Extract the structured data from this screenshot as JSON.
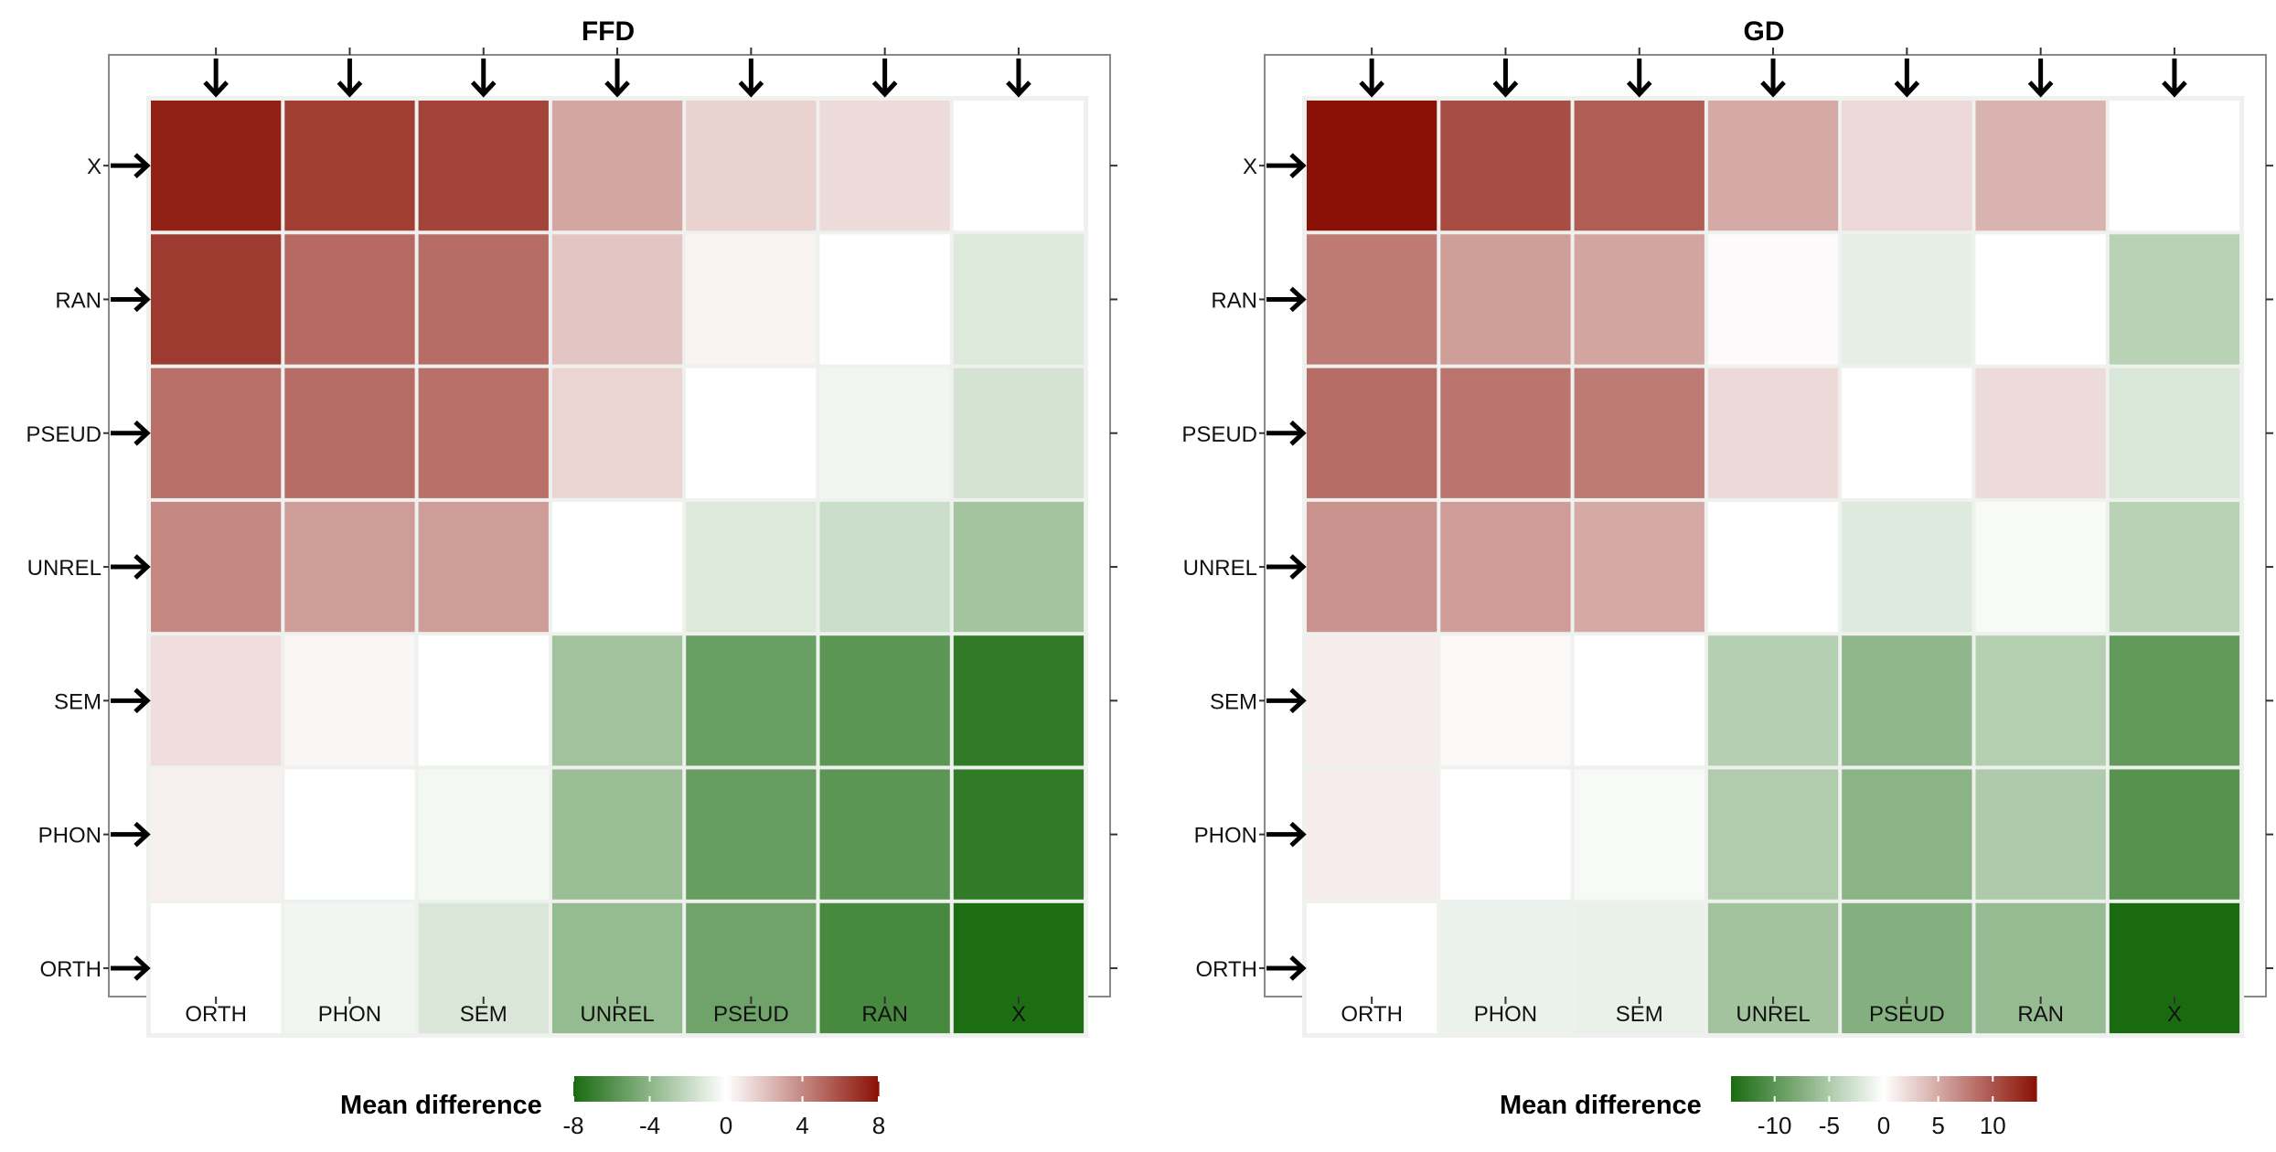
{
  "chart_data": [
    {
      "type": "heatmap",
      "title": "FFD",
      "columns": [
        "ORTH",
        "PHON",
        "SEM",
        "UNREL",
        "PSEUD",
        "RAN",
        "X"
      ],
      "rows": [
        "X",
        "RAN",
        "PSEUD",
        "UNREL",
        "SEM",
        "PHON",
        "ORTH"
      ],
      "values": [
        [
          7.5,
          6.5,
          6.3,
          3.0,
          1.5,
          1.2,
          0
        ],
        [
          6.6,
          5.0,
          4.9,
          1.9,
          0.4,
          0,
          -1.2
        ],
        [
          4.8,
          4.9,
          4.8,
          1.4,
          0,
          -0.5,
          -1.5
        ],
        [
          4.0,
          3.3,
          3.3,
          0,
          -1.2,
          -1.8,
          -3.2
        ],
        [
          1.1,
          0.3,
          0,
          -3.3,
          -5.2,
          -5.7,
          -7.2
        ],
        [
          0.5,
          0,
          -0.4,
          -3.5,
          -5.3,
          -5.7,
          -7.2
        ],
        [
          0,
          -0.5,
          -1.3,
          -3.7,
          -5.0,
          -6.4,
          -7.9
        ]
      ],
      "legend": {
        "title": "Mean  difference",
        "limits": [
          -8,
          8
        ],
        "ticks": [
          -8,
          -4,
          0,
          4,
          8
        ],
        "tick_labels": [
          "-8",
          "-4",
          "0",
          "4",
          "8"
        ],
        "position": "bottom"
      },
      "colors": {
        "low": "#1a6b10",
        "mid": "#ffffff",
        "high": "#8a1105"
      }
    },
    {
      "type": "heatmap",
      "title": "GD",
      "columns": [
        "ORTH",
        "PHON",
        "SEM",
        "UNREL",
        "PSEUD",
        "RAN",
        "X"
      ],
      "rows": [
        "X",
        "RAN",
        "PSEUD",
        "UNREL",
        "SEM",
        "PHON",
        "ORTH"
      ],
      "values": [
        [
          14.0,
          10.5,
          9.5,
          5.0,
          2.3,
          4.5,
          0
        ],
        [
          7.8,
          5.7,
          5.3,
          0.3,
          -1.5,
          0,
          -4.3
        ],
        [
          8.7,
          8.1,
          7.8,
          2.2,
          0,
          2.1,
          -2.3
        ],
        [
          6.4,
          5.8,
          5.0,
          0,
          -2.0,
          -0.5,
          -4.3
        ],
        [
          1.1,
          0.4,
          0,
          -4.5,
          -6.8,
          -4.6,
          -9.6
        ],
        [
          1.1,
          0,
          -0.5,
          -4.8,
          -7.1,
          -5.0,
          -10.3
        ],
        [
          0,
          -1.2,
          -1.3,
          -5.7,
          -7.5,
          -6.4,
          -14.0
        ]
      ],
      "legend": {
        "title": "Mean  difference",
        "limits": [
          -14,
          14
        ],
        "ticks": [
          -10,
          -5,
          0,
          5,
          10
        ],
        "tick_labels": [
          "-10",
          "-5",
          "0",
          "5",
          "10"
        ],
        "position": "bottom"
      },
      "colors": {
        "low": "#1a6b10",
        "mid": "#ffffff",
        "high": "#8a1105"
      }
    }
  ]
}
